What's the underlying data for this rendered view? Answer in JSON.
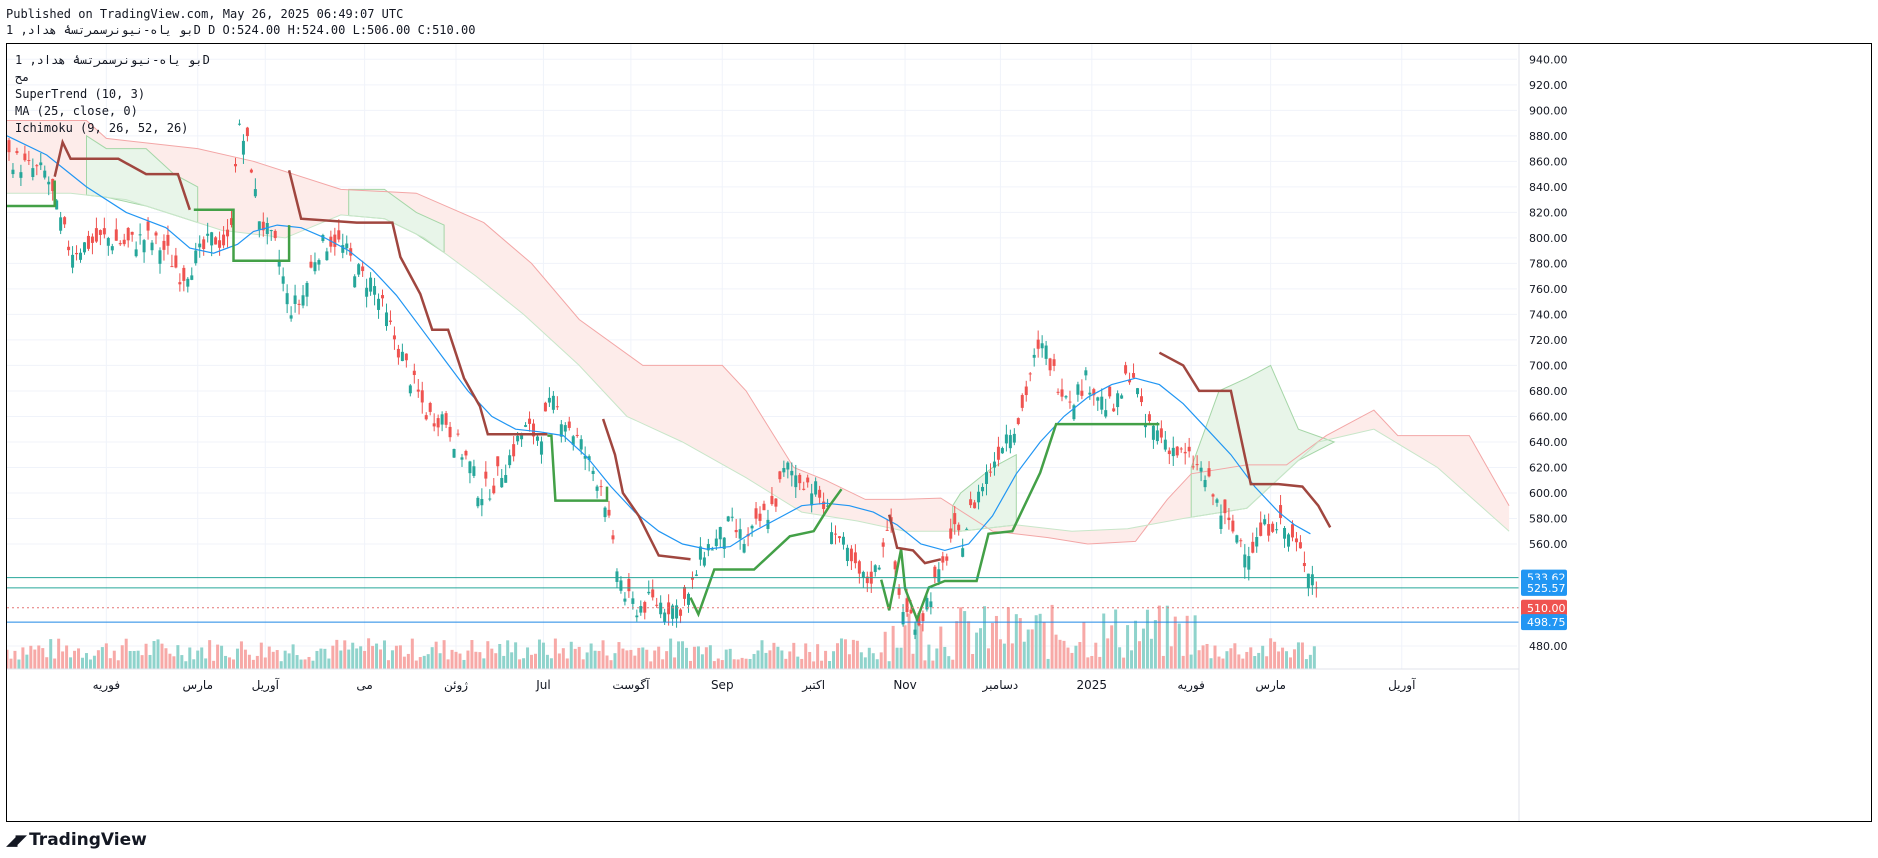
{
  "header": {
    "published_line": "Published on TradingView.com, May 26, 2025 06:49:07 UTC",
    "symbol_line": "بو یاه-نیونرسمرتسۀ هداد, 1D D O:524.00 H:524.00 L:506.00 C:510.00"
  },
  "legend": {
    "symbol": "بو یاه-نیونرسمرتسۀ هداد, 1D",
    "market": "مح",
    "indicators": [
      "SuperTrend (10, 3)",
      "MA (25, close, 0)",
      "Ichimoku (9, 26, 52, 26)"
    ]
  },
  "footer": {
    "brand": "TradingView",
    "logo_icon": "tradingview-logo-icon"
  },
  "colors": {
    "up": "#26a69a",
    "down": "#ef5350",
    "ma": "#2196f3",
    "st_up": "#43a047",
    "st_down": "#a0463f",
    "cloud_green": "#e8f5e9",
    "cloud_red": "#fdecea",
    "price_line": "#e57373",
    "level_line": "#1e88e5",
    "teal_line": "#26a69a"
  },
  "chart_data": {
    "type": "candlestick",
    "x_range": [
      0,
      380
    ],
    "ylim": [
      462,
      952
    ],
    "y_ticks": [
      480,
      560,
      580,
      600,
      620,
      640,
      660,
      680,
      700,
      720,
      740,
      760,
      780,
      800,
      820,
      840,
      860,
      880,
      900,
      920,
      940
    ],
    "x_ticks": [
      {
        "label": "فوریه",
        "x": 25
      },
      {
        "label": "مارس",
        "x": 48
      },
      {
        "label": "آوریل",
        "x": 65
      },
      {
        "label": "می",
        "x": 90
      },
      {
        "label": "ژوئن",
        "x": 113
      },
      {
        "label": "Jul",
        "x": 135
      },
      {
        "label": "آگوست",
        "x": 157
      },
      {
        "label": "Sep",
        "x": 180
      },
      {
        "label": "اکتبر",
        "x": 203
      },
      {
        "label": "Nov",
        "x": 226
      },
      {
        "label": "دسامبر",
        "x": 250
      },
      {
        "label": "2025",
        "x": 273
      },
      {
        "label": "فوریه",
        "x": 298
      },
      {
        "label": "مارس",
        "x": 318
      },
      {
        "label": "آوریل",
        "x": 351
      }
    ],
    "price_labels": [
      {
        "value": 533.62,
        "label": "533.62",
        "color": "#2196f3"
      },
      {
        "value": 525.57,
        "label": "525.57",
        "color": "#2196f3"
      },
      {
        "value": 510.0,
        "label": "510.00",
        "color": "#ef5350"
      },
      {
        "value": 498.75,
        "label": "498.75",
        "color": "#2196f3"
      }
    ],
    "horizontal_lines": [
      {
        "value": 533.62,
        "style": "solid",
        "color": "#26a69a"
      },
      {
        "value": 525.57,
        "style": "solid",
        "color": "#26a69a"
      },
      {
        "value": 510,
        "style": "dotted",
        "color": "#e57373"
      },
      {
        "value": 498.75,
        "style": "solid",
        "color": "#1e88e5"
      }
    ],
    "closes": [
      [
        0,
        865
      ],
      [
        5,
        855
      ],
      [
        10,
        850
      ],
      [
        13,
        815
      ],
      [
        16,
        790
      ],
      [
        20,
        795
      ],
      [
        25,
        800
      ],
      [
        30,
        795
      ],
      [
        35,
        800
      ],
      [
        40,
        790
      ],
      [
        44,
        770
      ],
      [
        48,
        785
      ],
      [
        52,
        800
      ],
      [
        56,
        795
      ],
      [
        58,
        885
      ],
      [
        61,
        870
      ],
      [
        63,
        820
      ],
      [
        66,
        800
      ],
      [
        68,
        790
      ],
      [
        71,
        745
      ],
      [
        74,
        750
      ],
      [
        78,
        790
      ],
      [
        82,
        800
      ],
      [
        85,
        790
      ],
      [
        89,
        770
      ],
      [
        92,
        765
      ],
      [
        95,
        740
      ],
      [
        99,
        710
      ],
      [
        103,
        680
      ],
      [
        106,
        660
      ],
      [
        110,
        660
      ],
      [
        113,
        640
      ],
      [
        116,
        625
      ],
      [
        119,
        600
      ],
      [
        122,
        605
      ],
      [
        126,
        625
      ],
      [
        130,
        650
      ],
      [
        134,
        645
      ],
      [
        137,
        670
      ],
      [
        140,
        660
      ],
      [
        144,
        640
      ],
      [
        147,
        620
      ],
      [
        150,
        605
      ],
      [
        153,
        545
      ],
      [
        156,
        515
      ],
      [
        159,
        510
      ],
      [
        162,
        515
      ],
      [
        166,
        512
      ],
      [
        169,
        510
      ],
      [
        172,
        520
      ],
      [
        175,
        555
      ],
      [
        178,
        560
      ],
      [
        182,
        575
      ],
      [
        186,
        560
      ],
      [
        190,
        580
      ],
      [
        193,
        590
      ],
      [
        196,
        620
      ],
      [
        198,
        615
      ],
      [
        201,
        610
      ],
      [
        204,
        600
      ],
      [
        207,
        580
      ],
      [
        210,
        560
      ],
      [
        213,
        540
      ],
      [
        216,
        530
      ],
      [
        219,
        540
      ],
      [
        222,
        585
      ],
      [
        224,
        525
      ],
      [
        226,
        505
      ],
      [
        230,
        500
      ],
      [
        232,
        520
      ],
      [
        235,
        535
      ],
      [
        238,
        570
      ],
      [
        240,
        560
      ],
      [
        243,
        590
      ],
      [
        246,
        610
      ],
      [
        249,
        630
      ],
      [
        252,
        650
      ],
      [
        255,
        660
      ],
      [
        258,
        700
      ],
      [
        261,
        715
      ],
      [
        264,
        690
      ],
      [
        268,
        675
      ],
      [
        272,
        690
      ],
      [
        276,
        670
      ],
      [
        279,
        665
      ],
      [
        283,
        700
      ],
      [
        286,
        655
      ],
      [
        289,
        650
      ],
      [
        292,
        640
      ],
      [
        295,
        630
      ],
      [
        298,
        625
      ],
      [
        301,
        615
      ],
      [
        304,
        595
      ],
      [
        307,
        575
      ],
      [
        310,
        565
      ],
      [
        313,
        555
      ],
      [
        316,
        570
      ],
      [
        319,
        580
      ],
      [
        322,
        570
      ],
      [
        325,
        555
      ],
      [
        328,
        540
      ],
      [
        331,
        520
      ],
      [
        333,
        510
      ]
    ],
    "ma_line": [
      [
        0,
        880
      ],
      [
        10,
        865
      ],
      [
        20,
        840
      ],
      [
        30,
        820
      ],
      [
        40,
        808
      ],
      [
        46,
        792
      ],
      [
        52,
        788
      ],
      [
        58,
        795
      ],
      [
        62,
        805
      ],
      [
        68,
        810
      ],
      [
        74,
        808
      ],
      [
        80,
        800
      ],
      [
        86,
        790
      ],
      [
        92,
        775
      ],
      [
        98,
        755
      ],
      [
        104,
        730
      ],
      [
        110,
        705
      ],
      [
        116,
        680
      ],
      [
        122,
        660
      ],
      [
        128,
        650
      ],
      [
        134,
        648
      ],
      [
        140,
        645
      ],
      [
        146,
        628
      ],
      [
        152,
        605
      ],
      [
        158,
        585
      ],
      [
        164,
        570
      ],
      [
        170,
        560
      ],
      [
        176,
        556
      ],
      [
        182,
        558
      ],
      [
        188,
        570
      ],
      [
        194,
        580
      ],
      [
        200,
        590
      ],
      [
        206,
        592
      ],
      [
        212,
        590
      ],
      [
        218,
        585
      ],
      [
        224,
        575
      ],
      [
        230,
        560
      ],
      [
        236,
        555
      ],
      [
        242,
        560
      ],
      [
        248,
        582
      ],
      [
        254,
        615
      ],
      [
        260,
        640
      ],
      [
        266,
        660
      ],
      [
        272,
        675
      ],
      [
        278,
        685
      ],
      [
        284,
        690
      ],
      [
        290,
        685
      ],
      [
        296,
        670
      ],
      [
        302,
        650
      ],
      [
        308,
        630
      ],
      [
        314,
        605
      ],
      [
        320,
        585
      ],
      [
        324,
        575
      ],
      [
        328,
        568
      ]
    ],
    "supertrend_up": [
      [
        [
          0,
          825
        ],
        [
          12,
          825
        ],
        [
          12,
          845
        ]
      ],
      [
        [
          47,
          822
        ],
        [
          57,
          822
        ],
        [
          57,
          782
        ],
        [
          71,
          782
        ],
        [
          71,
          810
        ]
      ],
      [
        [
          136,
          645
        ],
        [
          137,
          645
        ],
        [
          138,
          594
        ],
        [
          151,
          594
        ],
        [
          151,
          605
        ]
      ],
      [
        [
          172,
          518
        ],
        [
          174,
          505
        ],
        [
          178,
          540
        ],
        [
          188,
          540
        ],
        [
          197,
          566
        ],
        [
          203,
          570
        ],
        [
          207,
          590
        ],
        [
          210,
          603
        ]
      ],
      [
        [
          220,
          532
        ],
        [
          222,
          508
        ],
        [
          225,
          556
        ],
        [
          226,
          525
        ],
        [
          229,
          501
        ],
        [
          232,
          526
        ],
        [
          236,
          531
        ],
        [
          244,
          531
        ],
        [
          247,
          568
        ],
        [
          253,
          570
        ],
        [
          260,
          616
        ],
        [
          264,
          654
        ],
        [
          290,
          654
        ]
      ]
    ],
    "supertrend_down": [
      [
        [
          12,
          848
        ],
        [
          14,
          875
        ],
        [
          16,
          862
        ],
        [
          28,
          862
        ],
        [
          35,
          850
        ],
        [
          43,
          850
        ],
        [
          46,
          822
        ]
      ],
      [
        [
          71,
          853
        ],
        [
          74,
          815
        ],
        [
          88,
          812
        ],
        [
          97,
          812
        ],
        [
          99,
          785
        ],
        [
          104,
          756
        ],
        [
          107,
          728
        ],
        [
          111,
          728
        ],
        [
          115,
          690
        ],
        [
          119,
          668
        ],
        [
          121,
          646
        ],
        [
          136,
          646
        ]
      ],
      [
        [
          150,
          658
        ],
        [
          153,
          630
        ],
        [
          155,
          600
        ],
        [
          159,
          582
        ],
        [
          164,
          551
        ],
        [
          172,
          548
        ]
      ],
      [
        [
          222,
          583
        ],
        [
          224,
          557
        ],
        [
          228,
          555
        ],
        [
          231,
          545
        ],
        [
          235,
          548
        ]
      ],
      [
        [
          290,
          710
        ],
        [
          296,
          700
        ],
        [
          300,
          680
        ],
        [
          308,
          680
        ],
        [
          313,
          607
        ],
        [
          320,
          607
        ],
        [
          326,
          605
        ],
        [
          330,
          590
        ],
        [
          333,
          573
        ]
      ]
    ],
    "cloud_green": [
      [
        [
          20,
          880
        ],
        [
          25,
          870
        ],
        [
          35,
          870
        ],
        [
          42,
          850
        ],
        [
          48,
          840
        ]
      ],
      [
        [
          86,
          838
        ],
        [
          95,
          838
        ],
        [
          103,
          820
        ],
        [
          110,
          810
        ]
      ],
      [
        [
          238,
          590
        ],
        [
          240,
          600
        ],
        [
          248,
          620
        ],
        [
          254,
          630
        ]
      ],
      [
        [
          298,
          620
        ],
        [
          305,
          680
        ],
        [
          312,
          690
        ],
        [
          318,
          700
        ],
        [
          325,
          650
        ],
        [
          334,
          640
        ]
      ]
    ],
    "cloud_red": [
      [
        [
          0,
          892
        ],
        [
          20,
          892
        ],
        [
          25,
          878
        ],
        [
          48,
          870
        ],
        [
          62,
          860
        ],
        [
          84,
          838
        ],
        [
          103,
          835
        ],
        [
          120,
          812
        ],
        [
          132,
          780
        ],
        [
          144,
          736
        ],
        [
          160,
          700
        ],
        [
          180,
          700
        ],
        [
          186,
          680
        ],
        [
          198,
          620
        ],
        [
          206,
          610
        ],
        [
          216,
          595
        ],
        [
          225,
          595
        ],
        [
          235,
          596
        ],
        [
          248,
          570
        ],
        [
          262,
          565
        ],
        [
          272,
          560
        ],
        [
          284,
          562
        ],
        [
          292,
          595
        ],
        [
          298,
          615
        ],
        [
          312,
          622
        ],
        [
          322,
          622
        ],
        [
          332,
          645
        ],
        [
          344,
          665
        ],
        [
          350,
          645
        ],
        [
          368,
          645
        ],
        [
          378,
          590
        ]
      ],
      [
        [
          0,
          835
        ],
        [
          16,
          835
        ],
        [
          30,
          830
        ],
        [
          42,
          818
        ],
        [
          54,
          806
        ],
        [
          70,
          800
        ],
        [
          84,
          818
        ],
        [
          95,
          815
        ],
        [
          105,
          800
        ],
        [
          118,
          770
        ],
        [
          130,
          740
        ],
        [
          144,
          700
        ],
        [
          156,
          660
        ],
        [
          170,
          640
        ],
        [
          186,
          612
        ],
        [
          200,
          585
        ],
        [
          214,
          578
        ],
        [
          226,
          570
        ],
        [
          240,
          570
        ],
        [
          254,
          575
        ],
        [
          268,
          570
        ],
        [
          282,
          572
        ],
        [
          296,
          580
        ],
        [
          312,
          588
        ],
        [
          330,
          640
        ],
        [
          344,
          650
        ],
        [
          360,
          620
        ],
        [
          378,
          570
        ]
      ]
    ],
    "volume_scale": [
      0,
      1
    ]
  }
}
